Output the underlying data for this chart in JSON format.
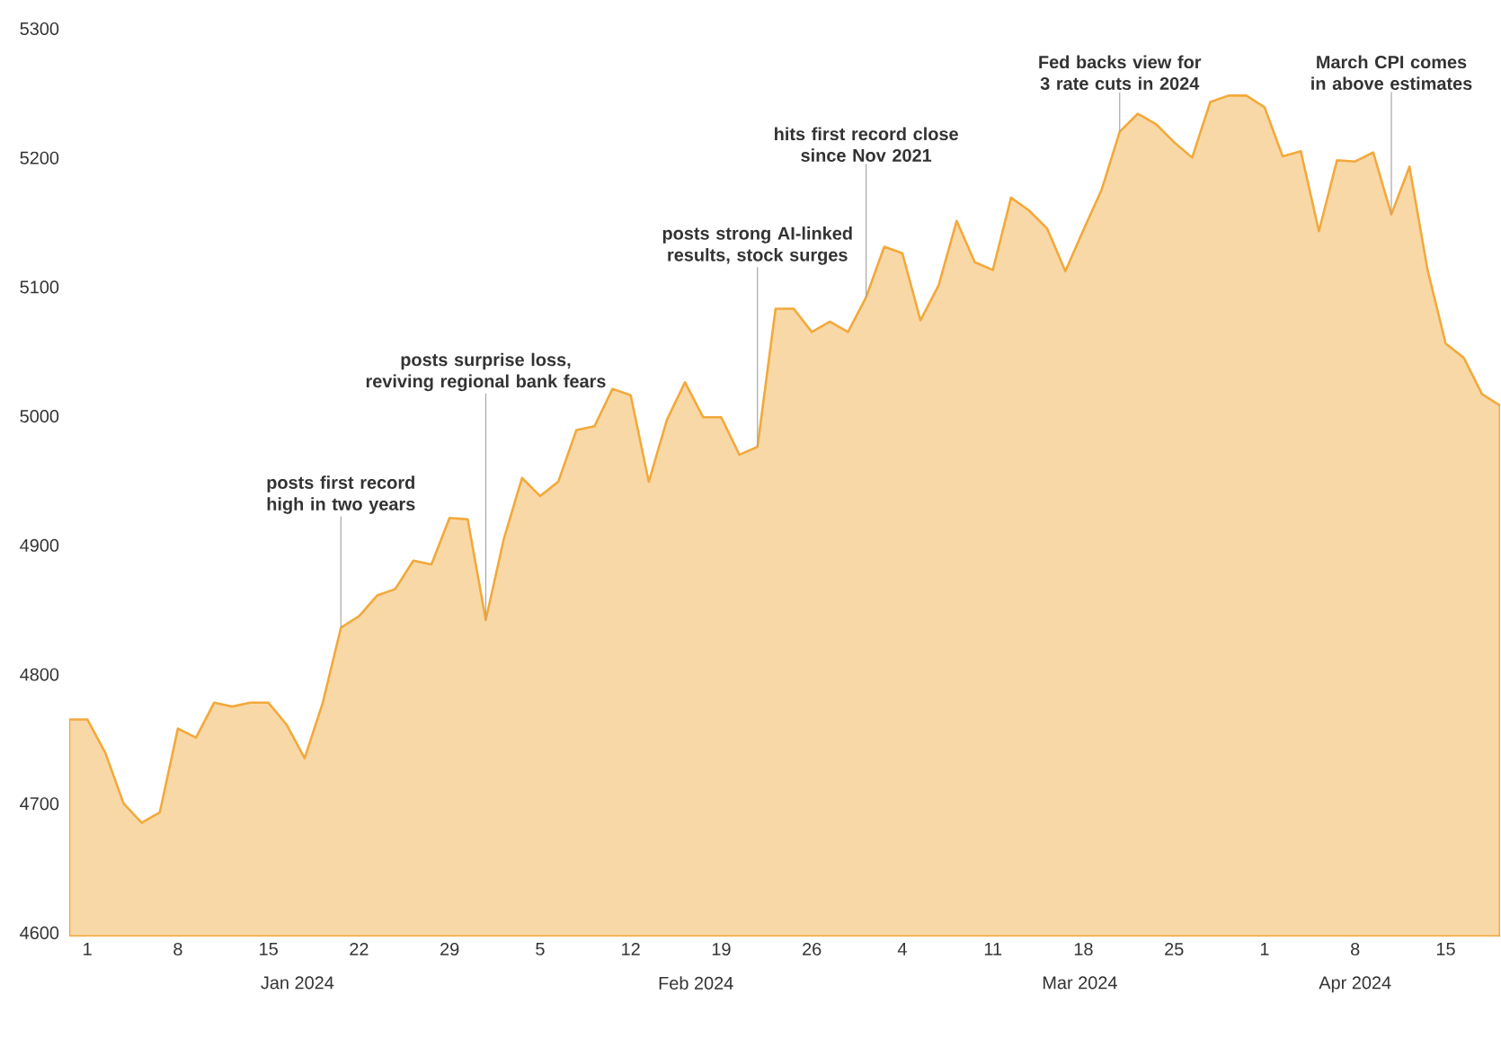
{
  "chart_data": {
    "type": "area",
    "color": "#f9d8a7",
    "categories": [
      null,
      "1",
      null,
      null,
      null,
      null,
      "8",
      null,
      null,
      null,
      null,
      "15",
      null,
      null,
      null,
      null,
      "22",
      null,
      null,
      null,
      null,
      "29",
      null,
      null,
      null,
      null,
      "5",
      null,
      null,
      null,
      null,
      "12",
      null,
      null,
      null,
      null,
      "19",
      null,
      null,
      null,
      null,
      "26",
      null,
      null,
      null,
      null,
      "4",
      null,
      null,
      null,
      null,
      "11",
      null,
      null,
      null,
      null,
      "18",
      null,
      null,
      null,
      null,
      "25",
      null,
      null,
      null,
      null,
      "1",
      null,
      null,
      null,
      null,
      "8",
      null,
      null,
      null,
      null,
      "15",
      null,
      null,
      null
    ],
    "values": [
      4768,
      4768,
      4742,
      4703,
      4688,
      4696,
      4761,
      4754,
      4781,
      4778,
      4781,
      4781,
      4764,
      4738,
      4781,
      4839,
      4848,
      4864,
      4869,
      4891,
      4888,
      4924,
      4923,
      4845,
      4908,
      4955,
      4941,
      4952,
      4992,
      4995,
      5024,
      5019,
      4952,
      5000,
      5029,
      5002,
      5002,
      4973,
      4979,
      5086,
      5086,
      5068,
      5076,
      5068,
      5095,
      5134,
      5129,
      5077,
      5104,
      5154,
      5122,
      5116,
      5172,
      5162,
      5148,
      5115,
      5147,
      5178,
      5223,
      5237,
      5229,
      5215,
      5203,
      5246,
      5251,
      5251,
      5242,
      5204,
      5208,
      5146,
      5201,
      5200,
      5207,
      5159,
      5196,
      5116,
      5059,
      5048,
      5020,
      5011
    ],
    "ylim": [
      4600,
      5300
    ],
    "yticks": [
      4600,
      4700,
      4800,
      4900,
      5000,
      5100,
      5200,
      5300
    ],
    "annotations": [
      {
        "text": "posts first record high in two years",
        "y": 4839
      },
      {
        "text": "posts surprise loss, reviving regional bank fears",
        "y": 4845
      },
      {
        "text": "posts strong AI-linked results, stock surges",
        "y": 4979
      },
      {
        "text": "hits first record close since Nov 2021",
        "y": 5095
      },
      {
        "text": "Fed backs view for 3 rate cuts in 2024",
        "y": 5223
      },
      {
        "text": "March CPI comes in above estimates",
        "y": 5159
      },
      "Jan 2024",
      "Feb 2024",
      "Mar 2024",
      "Apr 2024"
    ]
  }
}
